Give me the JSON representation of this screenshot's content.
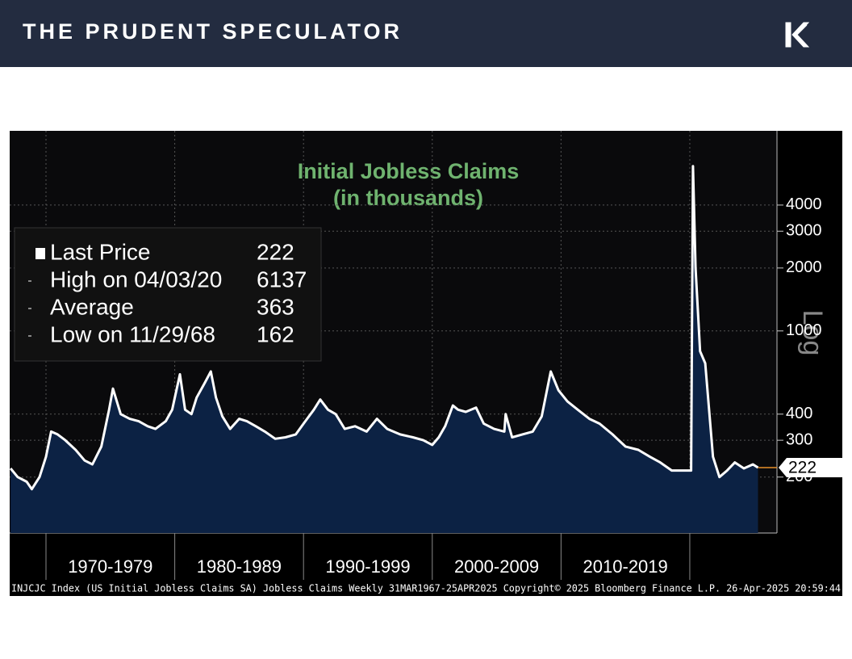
{
  "header": {
    "title": "THE PRUDENT SPECULATOR"
  },
  "chart_data": {
    "type": "area",
    "title": "Initial Jobless Claims",
    "subtitle": "(in thousands)",
    "log_label": "Log",
    "log_scale": true,
    "grid": true,
    "footer": "INJCJC Index (US Initial Jobless Claims SA) Jobless Claims  Weekly 31MAR1967-25APR2025  Copyright© 2025 Bloomberg Finance L.P.  26-Apr-2025 20:59:44",
    "xlim": [
      1967.18,
      2026.77
    ],
    "xticks": [
      1970,
      1980,
      1990,
      2000,
      2010,
      2020
    ],
    "xtick_labels": [
      "1970-1979",
      "1980-1989",
      "1990-1999",
      "2000-2009",
      "2010-2019"
    ],
    "ylim": [
      108,
      9060
    ],
    "yticks": [
      200,
      300,
      400,
      1000,
      2000,
      3000,
      4000
    ],
    "legend": [
      {
        "label": "Last Price",
        "value": 222
      },
      {
        "label": "High on 04/03/20",
        "value": 6137
      },
      {
        "label": "Average",
        "value": 363
      },
      {
        "label": "Low on 11/29/68",
        "value": 162
      }
    ],
    "series": [
      {
        "name": "Last Price",
        "color": "#ffffff",
        "fill": "#0c2244",
        "x": [
          1967.25,
          1967.8,
          1968.5,
          1968.9,
          1969.5,
          1970.0,
          1970.4,
          1970.9,
          1971.5,
          1972.3,
          1973.0,
          1973.6,
          1974.3,
          1974.9,
          1975.2,
          1975.8,
          1976.5,
          1977.2,
          1977.9,
          1978.5,
          1979.3,
          1979.8,
          1980.4,
          1980.8,
          1981.3,
          1981.7,
          1982.3,
          1982.8,
          1983.2,
          1983.7,
          1984.3,
          1985.0,
          1985.6,
          1986.3,
          1987.0,
          1987.8,
          1988.6,
          1989.4,
          1990.0,
          1990.8,
          1991.3,
          1991.9,
          1992.5,
          1993.2,
          1994.0,
          1994.9,
          1995.7,
          1996.5,
          1997.5,
          1998.5,
          1999.3,
          2000.0,
          2000.5,
          2001.0,
          2001.6,
          2002.0,
          2002.6,
          2003.4,
          2004.0,
          2004.8,
          2005.6,
          2005.7,
          2006.2,
          2007.0,
          2007.8,
          2008.5,
          2009.2,
          2009.8,
          2010.5,
          2011.3,
          2012.2,
          2013.0,
          2014.0,
          2015.0,
          2016.0,
          2016.9,
          2017.7,
          2018.6,
          2019.5,
          2020.1,
          2020.25,
          2020.45,
          2020.8,
          2021.2,
          2021.8,
          2022.3,
          2022.9,
          2023.5,
          2024.2,
          2024.9,
          2025.3
        ],
        "values": [
          220,
          200,
          190,
          175,
          200,
          250,
          330,
          320,
          300,
          270,
          240,
          230,
          280,
          420,
          530,
          400,
          380,
          370,
          350,
          340,
          370,
          420,
          620,
          420,
          400,
          480,
          560,
          640,
          480,
          390,
          340,
          380,
          370,
          350,
          330,
          305,
          310,
          320,
          360,
          420,
          470,
          420,
          400,
          340,
          350,
          330,
          380,
          340,
          320,
          310,
          300,
          285,
          310,
          350,
          440,
          420,
          410,
          430,
          360,
          340,
          330,
          400,
          310,
          320,
          330,
          390,
          640,
          520,
          460,
          420,
          380,
          360,
          320,
          280,
          270,
          250,
          235,
          215,
          215,
          215,
          6137,
          2000,
          800,
          700,
          250,
          200,
          215,
          235,
          220,
          230,
          222
        ]
      }
    ]
  }
}
